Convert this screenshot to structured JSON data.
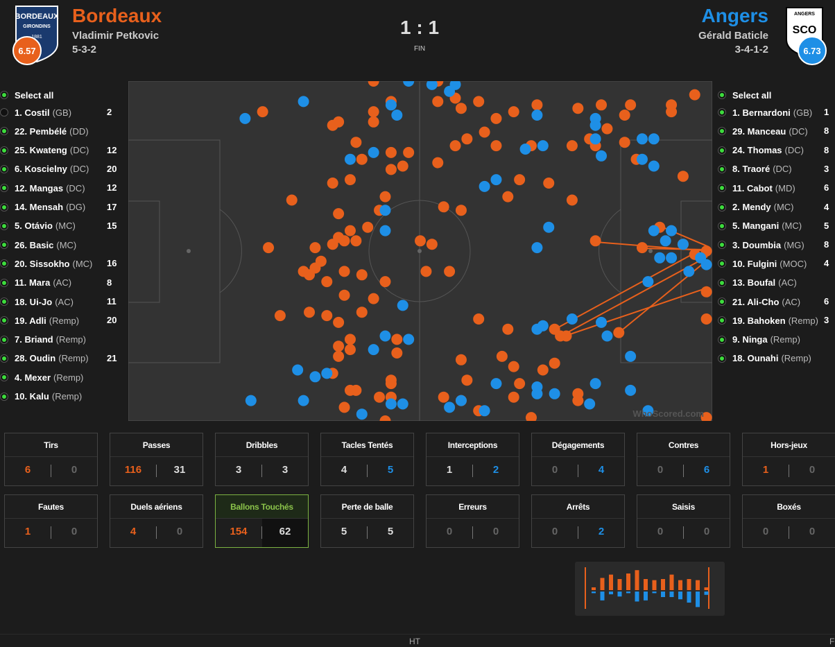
{
  "header": {
    "home": {
      "name": "Bordeaux",
      "coach": "Vladimir Petkovic",
      "formation": "5-3-2",
      "rating": "6.57",
      "logo": [
        "BORDEAUX",
        "GIRONDINS",
        "1881"
      ],
      "color": "#e8601c"
    },
    "away": {
      "name": "Angers",
      "coach": "Gérald Baticle",
      "formation": "3-4-1-2",
      "rating": "6.73",
      "logo": [
        "ANGERS",
        "SCO"
      ],
      "color": "#1e8fe6"
    },
    "score": "1 : 1",
    "status": "FIN"
  },
  "players": {
    "select_all": "Select all",
    "home": [
      {
        "name": "1. Costil",
        "pos": "(GB)",
        "count": 2,
        "on": false
      },
      {
        "name": "22. Pembélé",
        "pos": "(DD)",
        "count": null,
        "on": true
      },
      {
        "name": "25. Kwateng",
        "pos": "(DC)",
        "count": 12,
        "on": true
      },
      {
        "name": "6. Koscielny",
        "pos": "(DC)",
        "count": 20,
        "on": true
      },
      {
        "name": "12. Mangas",
        "pos": "(DC)",
        "count": 12,
        "on": true
      },
      {
        "name": "14. Mensah",
        "pos": "(DG)",
        "count": 17,
        "on": true
      },
      {
        "name": "5. Otávio",
        "pos": "(MC)",
        "count": 15,
        "on": true
      },
      {
        "name": "26. Basic",
        "pos": "(MC)",
        "count": null,
        "on": true
      },
      {
        "name": "20. Sissokho",
        "pos": "(MC)",
        "count": 16,
        "on": true
      },
      {
        "name": "11. Mara",
        "pos": "(AC)",
        "count": 8,
        "on": true
      },
      {
        "name": "18. Ui-Jo",
        "pos": "(AC)",
        "count": 11,
        "on": true
      },
      {
        "name": "19. Adli",
        "pos": "(Remp)",
        "count": 20,
        "on": true
      },
      {
        "name": "7. Briand",
        "pos": "(Remp)",
        "count": null,
        "on": true
      },
      {
        "name": "28. Oudin",
        "pos": "(Remp)",
        "count": 21,
        "on": true
      },
      {
        "name": "4. Mexer",
        "pos": "(Remp)",
        "count": null,
        "on": true
      },
      {
        "name": "10. Kalu",
        "pos": "(Remp)",
        "count": null,
        "on": true
      }
    ],
    "away": [
      {
        "name": "1. Bernardoni",
        "pos": "(GB)",
        "count": 1,
        "on": true
      },
      {
        "name": "29. Manceau",
        "pos": "(DC)",
        "count": 8,
        "on": true
      },
      {
        "name": "24. Thomas",
        "pos": "(DC)",
        "count": 8,
        "on": true
      },
      {
        "name": "8. Traoré",
        "pos": "(DC)",
        "count": 3,
        "on": true
      },
      {
        "name": "11. Cabot",
        "pos": "(MD)",
        "count": 6,
        "on": true
      },
      {
        "name": "2. Mendy",
        "pos": "(MC)",
        "count": 4,
        "on": true
      },
      {
        "name": "5. Mangani",
        "pos": "(MC)",
        "count": 5,
        "on": true
      },
      {
        "name": "3. Doumbia",
        "pos": "(MG)",
        "count": 8,
        "on": true
      },
      {
        "name": "10. Fulgini",
        "pos": "(MOC)",
        "count": 4,
        "on": true
      },
      {
        "name": "13. Boufal",
        "pos": "(AC)",
        "count": null,
        "on": true
      },
      {
        "name": "21. Ali-Cho",
        "pos": "(AC)",
        "count": 6,
        "on": true
      },
      {
        "name": "19. Bahoken",
        "pos": "(Remp)",
        "count": 3,
        "on": true
      },
      {
        "name": "9. Ninga",
        "pos": "(Remp)",
        "count": null,
        "on": true
      },
      {
        "name": "18. Ounahi",
        "pos": "(Remp)",
        "count": null,
        "on": true
      }
    ]
  },
  "touches": {
    "xlim": [
      0,
      100
    ],
    "ylim": [
      0,
      100
    ],
    "watermark": "WhoScored.com",
    "home": [
      [
        23,
        9
      ],
      [
        42,
        0
      ],
      [
        53,
        0
      ],
      [
        35,
        13
      ],
      [
        36,
        12
      ],
      [
        42,
        9
      ],
      [
        42,
        12
      ],
      [
        45,
        6
      ],
      [
        48,
        21
      ],
      [
        39,
        18
      ],
      [
        40,
        23
      ],
      [
        45,
        21
      ],
      [
        47,
        25
      ],
      [
        45,
        26
      ],
      [
        44,
        34
      ],
      [
        35,
        30
      ],
      [
        38,
        29
      ],
      [
        28,
        35
      ],
      [
        36,
        39
      ],
      [
        43,
        38
      ],
      [
        41,
        43
      ],
      [
        38,
        44
      ],
      [
        39,
        47
      ],
      [
        36,
        46
      ],
      [
        37,
        47
      ],
      [
        35,
        48
      ],
      [
        24,
        49
      ],
      [
        32,
        49
      ],
      [
        33,
        53
      ],
      [
        32,
        55
      ],
      [
        30,
        56
      ],
      [
        37,
        56
      ],
      [
        40,
        57
      ],
      [
        34,
        59
      ],
      [
        31,
        57
      ],
      [
        37,
        63
      ],
      [
        44,
        59
      ],
      [
        42,
        64
      ],
      [
        31,
        68
      ],
      [
        26,
        69
      ],
      [
        34,
        69
      ],
      [
        36,
        71
      ],
      [
        40,
        68
      ],
      [
        38,
        76
      ],
      [
        36,
        78
      ],
      [
        38,
        79
      ],
      [
        36,
        81
      ],
      [
        46,
        76
      ],
      [
        46,
        80
      ],
      [
        35,
        86
      ],
      [
        38,
        91
      ],
      [
        39,
        91
      ],
      [
        45,
        88
      ],
      [
        45,
        89
      ],
      [
        43,
        93
      ],
      [
        45,
        93
      ],
      [
        37,
        96
      ],
      [
        44,
        100
      ],
      [
        50,
        47
      ],
      [
        52,
        48
      ],
      [
        51,
        56
      ],
      [
        55,
        56
      ],
      [
        53,
        6
      ],
      [
        56,
        5
      ],
      [
        60,
        6
      ],
      [
        57,
        8
      ],
      [
        61,
        15
      ],
      [
        63,
        11
      ],
      [
        66,
        9
      ],
      [
        70,
        7
      ],
      [
        77,
        8
      ],
      [
        81,
        7
      ],
      [
        86,
        7
      ],
      [
        93,
        7
      ],
      [
        97,
        4
      ],
      [
        93,
        9
      ],
      [
        85,
        10
      ],
      [
        82,
        14
      ],
      [
        85,
        18
      ],
      [
        80,
        19
      ],
      [
        79,
        17
      ],
      [
        76,
        19
      ],
      [
        69,
        19
      ],
      [
        63,
        19
      ],
      [
        56,
        19
      ],
      [
        58,
        17
      ],
      [
        53,
        24
      ],
      [
        67,
        29
      ],
      [
        72,
        30
      ],
      [
        76,
        35
      ],
      [
        65,
        34
      ],
      [
        57,
        38
      ],
      [
        54,
        37
      ],
      [
        87,
        23
      ],
      [
        95,
        28
      ],
      [
        80,
        47
      ],
      [
        88,
        49
      ],
      [
        91,
        43
      ],
      [
        95,
        48
      ],
      [
        97,
        51
      ],
      [
        99,
        50
      ],
      [
        99,
        62
      ],
      [
        99,
        70
      ],
      [
        84,
        74
      ],
      [
        73,
        73
      ],
      [
        74,
        75
      ],
      [
        75,
        75
      ],
      [
        65,
        73
      ],
      [
        60,
        70
      ],
      [
        57,
        82
      ],
      [
        64,
        81
      ],
      [
        66,
        84
      ],
      [
        67,
        89
      ],
      [
        71,
        85
      ],
      [
        73,
        83
      ],
      [
        58,
        88
      ],
      [
        66,
        93
      ],
      [
        77,
        92
      ],
      [
        77,
        94
      ],
      [
        54,
        93
      ],
      [
        57,
        94
      ],
      [
        60,
        97
      ],
      [
        69,
        99
      ],
      [
        99,
        99
      ]
    ],
    "away": [
      [
        20,
        11
      ],
      [
        30,
        6
      ],
      [
        48,
        0
      ],
      [
        52,
        1
      ],
      [
        55,
        3
      ],
      [
        56,
        1
      ],
      [
        45,
        7
      ],
      [
        46,
        10
      ],
      [
        70,
        10
      ],
      [
        80,
        11
      ],
      [
        80,
        13
      ],
      [
        90,
        17
      ],
      [
        88,
        17
      ],
      [
        80,
        17
      ],
      [
        81,
        22
      ],
      [
        88,
        23
      ],
      [
        90,
        25
      ],
      [
        68,
        20
      ],
      [
        71,
        19
      ],
      [
        42,
        21
      ],
      [
        38,
        23
      ],
      [
        63,
        29
      ],
      [
        61,
        31
      ],
      [
        44,
        38
      ],
      [
        44,
        44
      ],
      [
        72,
        43
      ],
      [
        70,
        49
      ],
      [
        90,
        44
      ],
      [
        93,
        44
      ],
      [
        92,
        47
      ],
      [
        95,
        48
      ],
      [
        93,
        52
      ],
      [
        91,
        52
      ],
      [
        98,
        52
      ],
      [
        99,
        54
      ],
      [
        96,
        56
      ],
      [
        89,
        59
      ],
      [
        47,
        66
      ],
      [
        71,
        72
      ],
      [
        70,
        73
      ],
      [
        76,
        70
      ],
      [
        81,
        71
      ],
      [
        82,
        75
      ],
      [
        86,
        81
      ],
      [
        44,
        75
      ],
      [
        48,
        76
      ],
      [
        42,
        79
      ],
      [
        29,
        85
      ],
      [
        32,
        87
      ],
      [
        34,
        86
      ],
      [
        21,
        94
      ],
      [
        30,
        94
      ],
      [
        45,
        95
      ],
      [
        40,
        98
      ],
      [
        47,
        95
      ],
      [
        55,
        96
      ],
      [
        57,
        94
      ],
      [
        61,
        97
      ],
      [
        63,
        89
      ],
      [
        70,
        90
      ],
      [
        70,
        92
      ],
      [
        73,
        92
      ],
      [
        80,
        89
      ],
      [
        79,
        95
      ],
      [
        86,
        91
      ],
      [
        89,
        97
      ]
    ]
  },
  "stats": [
    {
      "label": "Tirs",
      "home": 6,
      "away": 0
    },
    {
      "label": "Passes",
      "home": 116,
      "away": 31
    },
    {
      "label": "Dribbles",
      "home": 3,
      "away": 3
    },
    {
      "label": "Tacles Tentés",
      "home": 4,
      "away": 5
    },
    {
      "label": "Interceptions",
      "home": 1,
      "away": 2
    },
    {
      "label": "Dégagements",
      "home": 0,
      "away": 4
    },
    {
      "label": "Contres",
      "home": 0,
      "away": 6
    },
    {
      "label": "Hors-jeux",
      "home": 1,
      "away": 0
    },
    {
      "label": "Fautes",
      "home": 1,
      "away": 0
    },
    {
      "label": "Duels aériens",
      "home": 4,
      "away": 0
    },
    {
      "label": "Ballons Touchés",
      "home": 154,
      "away": 62,
      "selected": true
    },
    {
      "label": "Perte de balle",
      "home": 5,
      "away": 5
    },
    {
      "label": "Erreurs",
      "home": 0,
      "away": 0
    },
    {
      "label": "Arrêts",
      "home": 0,
      "away": 2
    },
    {
      "label": "Saisis",
      "home": 0,
      "away": 0
    },
    {
      "label": "Boxés",
      "home": 0,
      "away": 0
    }
  ],
  "timeline": {
    "home": [
      5,
      22,
      28,
      20,
      30,
      36,
      20,
      18,
      20,
      28,
      18,
      20,
      18,
      5
    ],
    "away": [
      3,
      16,
      5,
      9,
      3,
      18,
      16,
      3,
      10,
      10,
      14,
      20,
      28,
      6
    ],
    "max": 40,
    "labels": [
      "HT",
      "F"
    ]
  }
}
